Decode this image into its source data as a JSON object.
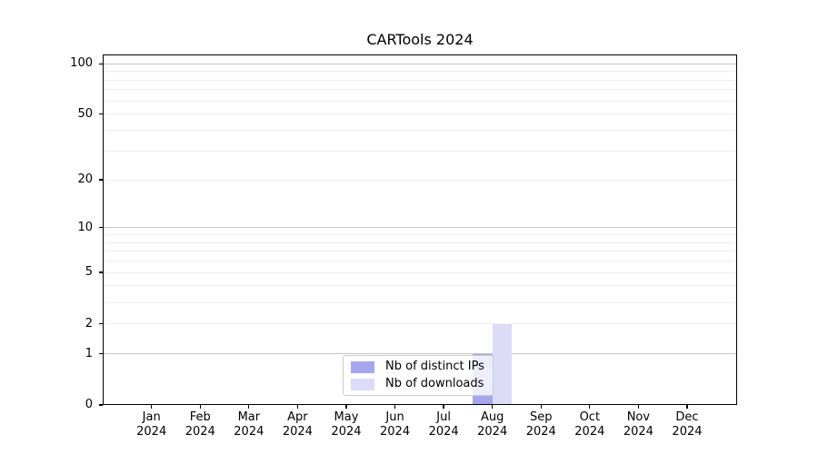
{
  "chart_data": {
    "type": "bar",
    "title": "CARTools 2024",
    "categories": [
      "Jan 2024",
      "Feb 2024",
      "Mar 2024",
      "Apr 2024",
      "May 2024",
      "Jun 2024",
      "Jul 2024",
      "Aug 2024",
      "Sep 2024",
      "Oct 2024",
      "Nov 2024",
      "Dec 2024"
    ],
    "series": [
      {
        "name": "Nb of distinct IPs",
        "color": "#a6a6ef",
        "values": [
          0,
          0,
          0,
          0,
          0,
          0,
          0,
          1,
          0,
          0,
          0,
          0
        ]
      },
      {
        "name": "Nb of downloads",
        "color": "#dcdcf9",
        "values": [
          0,
          0,
          0,
          0,
          0,
          0,
          0,
          2,
          0,
          0,
          0,
          0
        ]
      }
    ],
    "xlabel": "",
    "ylabel": "",
    "ylim": [
      0,
      100
    ],
    "y_scale": "log10(1+v)",
    "y_tick_labels": [
      0,
      1,
      2,
      5,
      10,
      20,
      50,
      100
    ],
    "y_major_gridlines": [
      1,
      10,
      100
    ],
    "y_minor_gridlines": [
      2,
      3,
      4,
      5,
      6,
      7,
      8,
      9,
      20,
      30,
      40,
      50,
      60,
      70,
      80,
      90
    ],
    "grid": true,
    "legend_position": "lower center"
  },
  "colors": {
    "background": "#ffffff",
    "axis": "#000000",
    "major_grid": "#c6c6c6",
    "minor_grid": "#ededed",
    "legend_border": "#cccccc"
  }
}
